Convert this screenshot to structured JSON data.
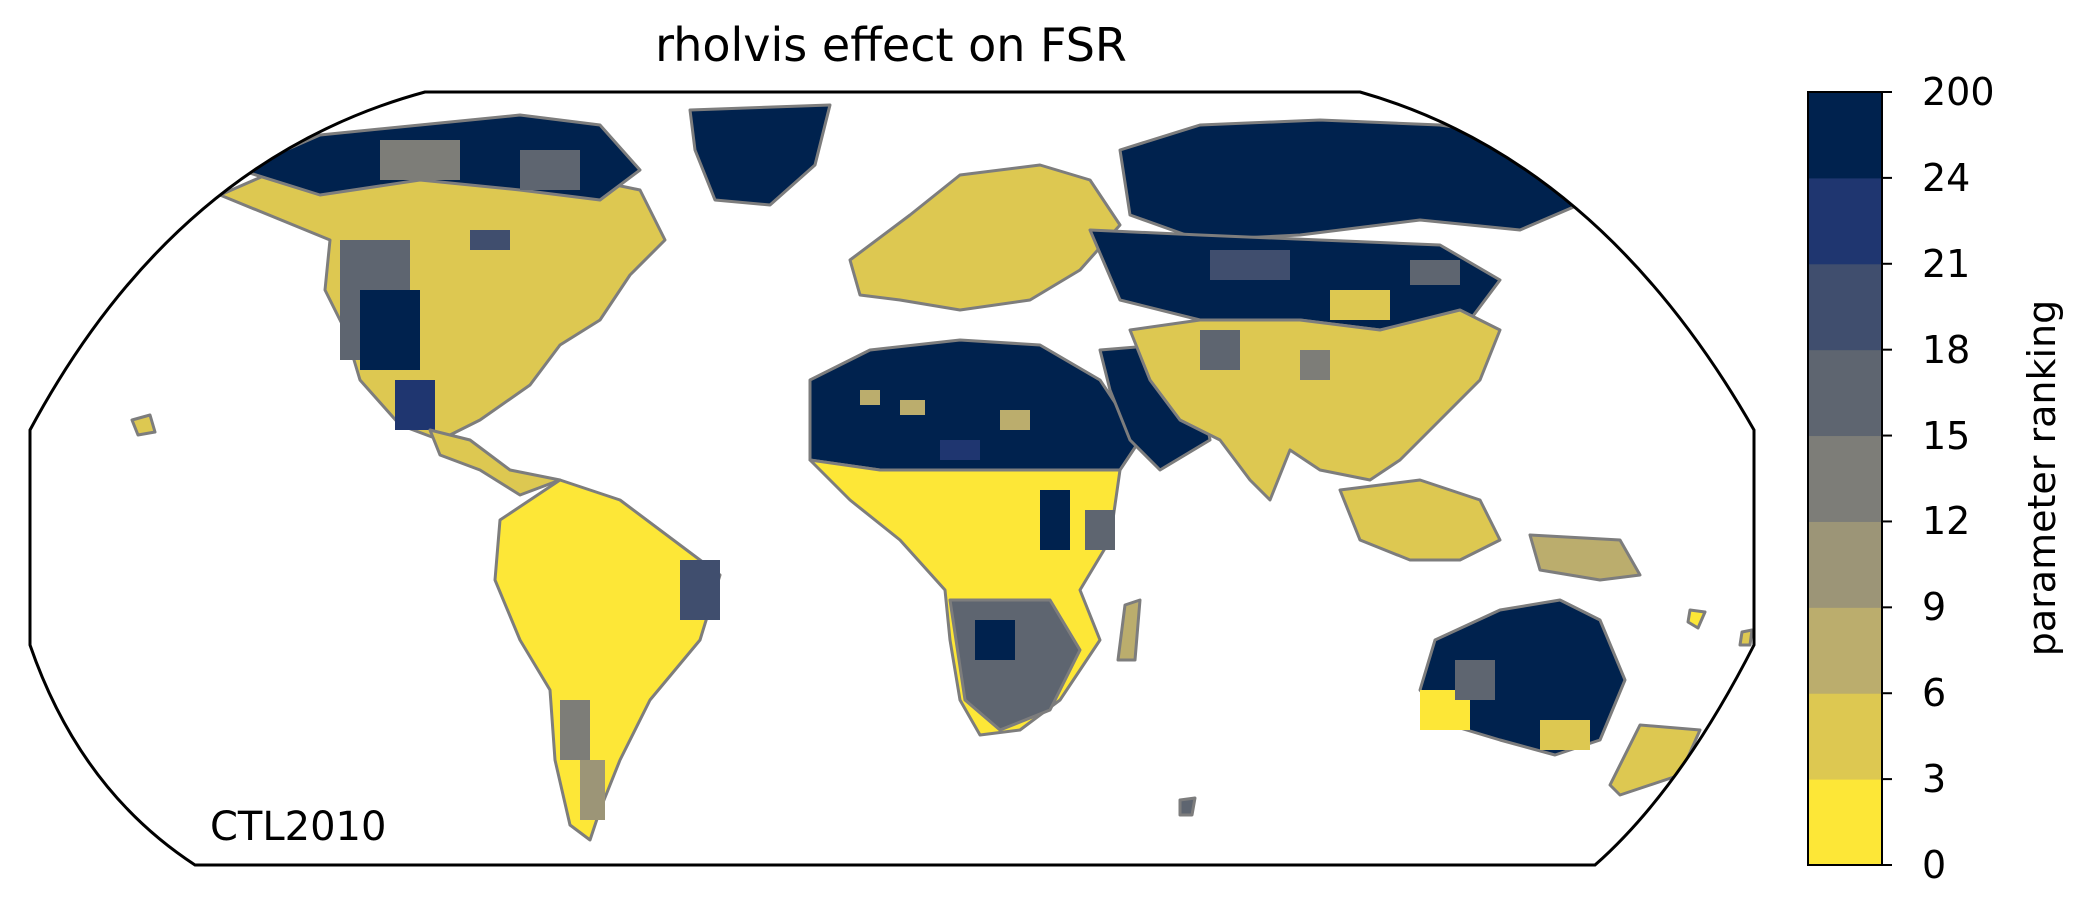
{
  "title": "rholvis effect on FSR",
  "panel_label": "CTL2010",
  "colorbar": {
    "label": "parameter ranking",
    "ticks": [
      "0",
      "3",
      "6",
      "9",
      "12",
      "15",
      "18",
      "21",
      "24",
      "200"
    ],
    "colors": [
      "#fde737",
      "#ddc851",
      "#bbad6d",
      "#9c9577",
      "#7d7d78",
      "#5e6570",
      "#404e6e",
      "#1f3670",
      "#00224e"
    ]
  },
  "map": {
    "projection": "robinson",
    "coastline_color": "#7d7d7d",
    "regions": [
      {
        "name": "north-america-west",
        "rank_class": 4
      },
      {
        "name": "north-america-east",
        "rank_class": 1
      },
      {
        "name": "canada-arctic",
        "rank_class": 8
      },
      {
        "name": "greenland",
        "rank_class": 8
      },
      {
        "name": "south-america",
        "rank_class": 0
      },
      {
        "name": "europe",
        "rank_class": 1
      },
      {
        "name": "sahara",
        "rank_class": 8
      },
      {
        "name": "central-africa",
        "rank_class": 0
      },
      {
        "name": "southern-africa",
        "rank_class": 5
      },
      {
        "name": "siberia",
        "rank_class": 8
      },
      {
        "name": "central-asia",
        "rank_class": 8
      },
      {
        "name": "south-asia",
        "rank_class": 1
      },
      {
        "name": "australia",
        "rank_class": 8
      },
      {
        "name": "maritime-southeast-asia",
        "rank_class": 1
      }
    ]
  }
}
